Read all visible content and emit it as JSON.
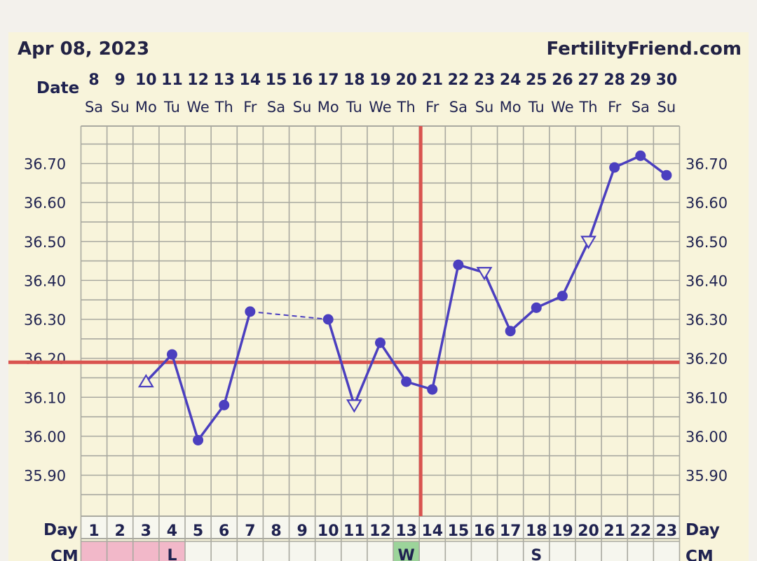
{
  "header": {
    "date": "Apr 08, 2023",
    "brand": "FertilityFriend.com"
  },
  "chart_data": {
    "type": "line",
    "row_labels": {
      "date": "Date",
      "day": "Day",
      "cm": "CM"
    },
    "dates": [
      "8",
      "9",
      "10",
      "11",
      "12",
      "13",
      "14",
      "15",
      "16",
      "17",
      "18",
      "19",
      "20",
      "21",
      "22",
      "23",
      "24",
      "25",
      "26",
      "27",
      "28",
      "29",
      "30"
    ],
    "weekdays": [
      "Sa",
      "Su",
      "Mo",
      "Tu",
      "We",
      "Th",
      "Fr",
      "Sa",
      "Su",
      "Mo",
      "Tu",
      "We",
      "Th",
      "Fr",
      "Sa",
      "Su",
      "Mo",
      "Tu",
      "We",
      "Th",
      "Fr",
      "Sa",
      "Su"
    ],
    "cycle_days": [
      "1",
      "2",
      "3",
      "4",
      "5",
      "6",
      "7",
      "8",
      "9",
      "10",
      "11",
      "12",
      "13",
      "14",
      "15",
      "16",
      "17",
      "18",
      "19",
      "20",
      "21",
      "22",
      "23"
    ],
    "ylim": [
      35.82,
      36.82
    ],
    "y_ticks": [
      "35.90",
      "36.00",
      "36.10",
      "36.20",
      "36.30",
      "36.40",
      "36.50",
      "36.60",
      "36.70"
    ],
    "series": [
      {
        "temperatures": [
          null,
          null,
          36.14,
          36.21,
          35.99,
          36.08,
          36.32,
          null,
          null,
          36.3,
          36.08,
          36.24,
          36.14,
          36.12,
          36.44,
          36.42,
          36.27,
          36.33,
          36.36,
          36.5,
          36.69,
          36.72,
          36.67
        ],
        "markers": [
          null,
          null,
          "open-up-triangle",
          "dot",
          "dot",
          "dot",
          "dot",
          null,
          null,
          "dot",
          "open-down-triangle",
          "dot",
          "dot",
          "dot",
          "dot",
          "open-down-triangle",
          "dot",
          "dot",
          "dot",
          "open-down-triangle",
          "dot",
          "dot",
          "dot"
        ],
        "dashed_gap": {
          "from_day": "7",
          "to_day": "10"
        }
      }
    ],
    "coverline": 36.19,
    "ovulation_day": "14",
    "cervical_mucus": [
      {
        "day": "1",
        "code": "",
        "color": "#f2b8c9"
      },
      {
        "day": "2",
        "code": "",
        "color": "#f2b8c9"
      },
      {
        "day": "3",
        "code": "",
        "color": "#f2b8c9"
      },
      {
        "day": "4",
        "code": "L",
        "color": "#f2b8c9"
      },
      {
        "day": "13",
        "code": "W",
        "color": "#9cd49a"
      },
      {
        "day": "18",
        "code": "S",
        "color": ""
      }
    ],
    "colors": {
      "line": "#4b3fbf",
      "coverline": "#d9534f",
      "grid": "#a9a9a0",
      "text": "#1f2250",
      "plot_bg": "#f8f4db"
    },
    "grid": true
  }
}
